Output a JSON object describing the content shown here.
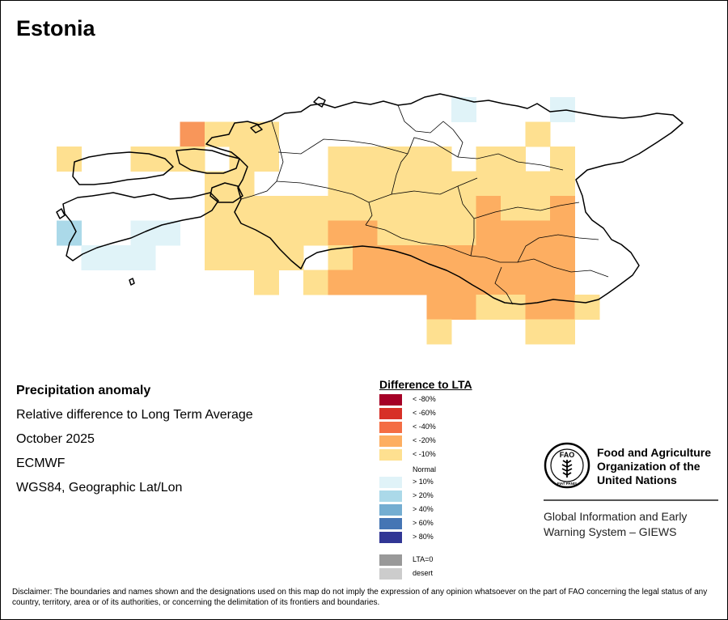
{
  "title": "Estonia",
  "info": {
    "heading": "Precipitation anomaly",
    "line1": "Relative difference to Long Term Average",
    "line2": "October 2025",
    "line3": "ECMWF",
    "line4": "WGS84, Geographic Lat/Lon"
  },
  "legend": {
    "title": "Difference to LTA",
    "normal_label": "Normal",
    "dry": [
      {
        "label": "< -80%",
        "color": "#a50026"
      },
      {
        "label": "< -60%",
        "color": "#d73027"
      },
      {
        "label": "< -40%",
        "color": "#f46d43"
      },
      {
        "label": "< -20%",
        "color": "#fdae61"
      },
      {
        "label": "< -10%",
        "color": "#fee090"
      }
    ],
    "wet": [
      {
        "label": "> 10%",
        "color": "#e0f3f8"
      },
      {
        "label": "> 20%",
        "color": "#abd9e9"
      },
      {
        "label": "> 40%",
        "color": "#74add1"
      },
      {
        "label": "> 60%",
        "color": "#4575b4"
      },
      {
        "label": "> 80%",
        "color": "#313695"
      }
    ],
    "other": [
      {
        "label": "LTA=0",
        "color": "#999999"
      },
      {
        "label": "desert",
        "color": "#cccccc"
      }
    ]
  },
  "fao": {
    "logo_text": "FAO",
    "logo_motto": "FIAT PANIS",
    "name_line1": "Food and Agriculture",
    "name_line2": "Organization of the",
    "name_line3": "United Nations",
    "giews_line1": "Global Information and Early",
    "giews_line2": "Warning System – GIEWS"
  },
  "disclaimer": "Disclaimer: The boundaries and names shown and the designations used on this map do not imply the expression of any opinion whatsoever on the part of FAO concerning the legal status of any country, territory, area or of its authorities, or concerning the delimitation of its frontiers and boundaries.",
  "map_grid": {
    "classes": {
      "y": "#fee090",
      "o": "#fdae61",
      "d": "#f8965a",
      "b": "#e0f3f8",
      "m": "#abd9e9"
    },
    "cells": [
      {
        "row": 0,
        "col": 16,
        "cls": "b"
      },
      {
        "row": 0,
        "col": 20,
        "cls": "b"
      },
      {
        "row": 1,
        "col": 5,
        "cls": "d"
      },
      {
        "row": 1,
        "col": 6,
        "cls": "y"
      },
      {
        "row": 1,
        "col": 7,
        "cls": "y"
      },
      {
        "row": 1,
        "col": 8,
        "cls": "y"
      },
      {
        "row": 1,
        "col": 19,
        "cls": "y"
      },
      {
        "row": 2,
        "col": 0,
        "cls": "y"
      },
      {
        "row": 2,
        "col": 3,
        "cls": "y"
      },
      {
        "row": 2,
        "col": 4,
        "cls": "y"
      },
      {
        "row": 2,
        "col": 5,
        "cls": "y"
      },
      {
        "row": 2,
        "col": 7,
        "cls": "y"
      },
      {
        "row": 2,
        "col": 8,
        "cls": "y"
      },
      {
        "row": 2,
        "col": 11,
        "cls": "y"
      },
      {
        "row": 2,
        "col": 12,
        "cls": "y"
      },
      {
        "row": 2,
        "col": 13,
        "cls": "y"
      },
      {
        "row": 2,
        "col": 14,
        "cls": "y"
      },
      {
        "row": 2,
        "col": 15,
        "cls": "y"
      },
      {
        "row": 2,
        "col": 17,
        "cls": "y"
      },
      {
        "row": 2,
        "col": 18,
        "cls": "y"
      },
      {
        "row": 2,
        "col": 20,
        "cls": "y"
      },
      {
        "row": 3,
        "col": 6,
        "cls": "y"
      },
      {
        "row": 3,
        "col": 7,
        "cls": "y"
      },
      {
        "row": 3,
        "col": 11,
        "cls": "y"
      },
      {
        "row": 3,
        "col": 12,
        "cls": "y"
      },
      {
        "row": 3,
        "col": 13,
        "cls": "y"
      },
      {
        "row": 3,
        "col": 14,
        "cls": "y"
      },
      {
        "row": 3,
        "col": 15,
        "cls": "y"
      },
      {
        "row": 3,
        "col": 16,
        "cls": "y"
      },
      {
        "row": 3,
        "col": 17,
        "cls": "y"
      },
      {
        "row": 3,
        "col": 18,
        "cls": "y"
      },
      {
        "row": 3,
        "col": 19,
        "cls": "y"
      },
      {
        "row": 3,
        "col": 20,
        "cls": "y"
      },
      {
        "row": 4,
        "col": 6,
        "cls": "y"
      },
      {
        "row": 4,
        "col": 7,
        "cls": "y"
      },
      {
        "row": 4,
        "col": 8,
        "cls": "y"
      },
      {
        "row": 4,
        "col": 9,
        "cls": "y"
      },
      {
        "row": 4,
        "col": 10,
        "cls": "y"
      },
      {
        "row": 4,
        "col": 11,
        "cls": "y"
      },
      {
        "row": 4,
        "col": 12,
        "cls": "y"
      },
      {
        "row": 4,
        "col": 13,
        "cls": "y"
      },
      {
        "row": 4,
        "col": 14,
        "cls": "y"
      },
      {
        "row": 4,
        "col": 15,
        "cls": "y"
      },
      {
        "row": 4,
        "col": 16,
        "cls": "y"
      },
      {
        "row": 4,
        "col": 17,
        "cls": "o"
      },
      {
        "row": 4,
        "col": 18,
        "cls": "y"
      },
      {
        "row": 4,
        "col": 19,
        "cls": "y"
      },
      {
        "row": 4,
        "col": 20,
        "cls": "o"
      },
      {
        "row": 5,
        "col": 0,
        "cls": "m"
      },
      {
        "row": 5,
        "col": 3,
        "cls": "b"
      },
      {
        "row": 5,
        "col": 4,
        "cls": "b"
      },
      {
        "row": 5,
        "col": 6,
        "cls": "y"
      },
      {
        "row": 5,
        "col": 7,
        "cls": "y"
      },
      {
        "row": 5,
        "col": 8,
        "cls": "y"
      },
      {
        "row": 5,
        "col": 9,
        "cls": "y"
      },
      {
        "row": 5,
        "col": 10,
        "cls": "y"
      },
      {
        "row": 5,
        "col": 11,
        "cls": "o"
      },
      {
        "row": 5,
        "col": 12,
        "cls": "o"
      },
      {
        "row": 5,
        "col": 13,
        "cls": "y"
      },
      {
        "row": 5,
        "col": 14,
        "cls": "y"
      },
      {
        "row": 5,
        "col": 15,
        "cls": "y"
      },
      {
        "row": 5,
        "col": 16,
        "cls": "y"
      },
      {
        "row": 5,
        "col": 17,
        "cls": "o"
      },
      {
        "row": 5,
        "col": 18,
        "cls": "o"
      },
      {
        "row": 5,
        "col": 19,
        "cls": "o"
      },
      {
        "row": 5,
        "col": 20,
        "cls": "o"
      },
      {
        "row": 6,
        "col": 1,
        "cls": "b"
      },
      {
        "row": 6,
        "col": 2,
        "cls": "b"
      },
      {
        "row": 6,
        "col": 3,
        "cls": "b"
      },
      {
        "row": 6,
        "col": 6,
        "cls": "y"
      },
      {
        "row": 6,
        "col": 7,
        "cls": "y"
      },
      {
        "row": 6,
        "col": 8,
        "cls": "y"
      },
      {
        "row": 6,
        "col": 9,
        "cls": "y"
      },
      {
        "row": 6,
        "col": 11,
        "cls": "y"
      },
      {
        "row": 6,
        "col": 12,
        "cls": "o"
      },
      {
        "row": 6,
        "col": 13,
        "cls": "o"
      },
      {
        "row": 6,
        "col": 14,
        "cls": "o"
      },
      {
        "row": 6,
        "col": 15,
        "cls": "o"
      },
      {
        "row": 6,
        "col": 16,
        "cls": "o"
      },
      {
        "row": 6,
        "col": 17,
        "cls": "o"
      },
      {
        "row": 6,
        "col": 18,
        "cls": "o"
      },
      {
        "row": 6,
        "col": 19,
        "cls": "o"
      },
      {
        "row": 6,
        "col": 20,
        "cls": "o"
      },
      {
        "row": 7,
        "col": 8,
        "cls": "y"
      },
      {
        "row": 7,
        "col": 10,
        "cls": "y"
      },
      {
        "row": 7,
        "col": 11,
        "cls": "o"
      },
      {
        "row": 7,
        "col": 12,
        "cls": "o"
      },
      {
        "row": 7,
        "col": 13,
        "cls": "o"
      },
      {
        "row": 7,
        "col": 14,
        "cls": "o"
      },
      {
        "row": 7,
        "col": 15,
        "cls": "o"
      },
      {
        "row": 7,
        "col": 16,
        "cls": "o"
      },
      {
        "row": 7,
        "col": 17,
        "cls": "o"
      },
      {
        "row": 7,
        "col": 18,
        "cls": "o"
      },
      {
        "row": 7,
        "col": 19,
        "cls": "o"
      },
      {
        "row": 7,
        "col": 20,
        "cls": "o"
      },
      {
        "row": 8,
        "col": 15,
        "cls": "o"
      },
      {
        "row": 8,
        "col": 16,
        "cls": "o"
      },
      {
        "row": 8,
        "col": 17,
        "cls": "y"
      },
      {
        "row": 8,
        "col": 18,
        "cls": "y"
      },
      {
        "row": 8,
        "col": 19,
        "cls": "o"
      },
      {
        "row": 8,
        "col": 20,
        "cls": "o"
      },
      {
        "row": 8,
        "col": 21,
        "cls": "y"
      },
      {
        "row": 9,
        "col": 15,
        "cls": "y"
      },
      {
        "row": 9,
        "col": 19,
        "cls": "y"
      },
      {
        "row": 9,
        "col": 20,
        "cls": "y"
      }
    ]
  }
}
